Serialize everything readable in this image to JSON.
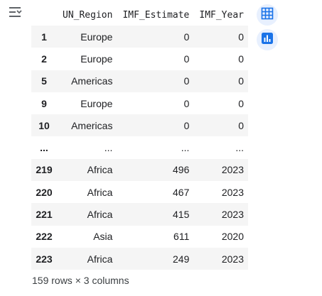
{
  "table": {
    "columns": [
      "",
      "UN_Region",
      "IMF_Estimate",
      "IMF_Year"
    ],
    "rows": [
      {
        "index": "1",
        "un_region": "Europe",
        "imf_estimate": "0",
        "imf_year": "0"
      },
      {
        "index": "2",
        "un_region": "Europe",
        "imf_estimate": "0",
        "imf_year": "0"
      },
      {
        "index": "5",
        "un_region": "Americas",
        "imf_estimate": "0",
        "imf_year": "0"
      },
      {
        "index": "9",
        "un_region": "Europe",
        "imf_estimate": "0",
        "imf_year": "0"
      },
      {
        "index": "10",
        "un_region": "Americas",
        "imf_estimate": "0",
        "imf_year": "0"
      },
      {
        "index": "...",
        "un_region": "...",
        "imf_estimate": "...",
        "imf_year": "..."
      },
      {
        "index": "219",
        "un_region": "Africa",
        "imf_estimate": "496",
        "imf_year": "2023"
      },
      {
        "index": "220",
        "un_region": "Africa",
        "imf_estimate": "467",
        "imf_year": "2023"
      },
      {
        "index": "221",
        "un_region": "Africa",
        "imf_estimate": "415",
        "imf_year": "2023"
      },
      {
        "index": "222",
        "un_region": "Asia",
        "imf_estimate": "611",
        "imf_year": "2020"
      },
      {
        "index": "223",
        "un_region": "Africa",
        "imf_estimate": "249",
        "imf_year": "2023"
      }
    ]
  },
  "summary": "159 rows × 3 columns",
  "icons": {
    "expand": "output-expand-icon",
    "table": "table-view-icon",
    "chart": "chart-view-icon"
  },
  "colors": {
    "row_stripe": "#f5f5f5",
    "icon_blue": "#1a73e8",
    "button_bg": "#e8f0fe"
  }
}
